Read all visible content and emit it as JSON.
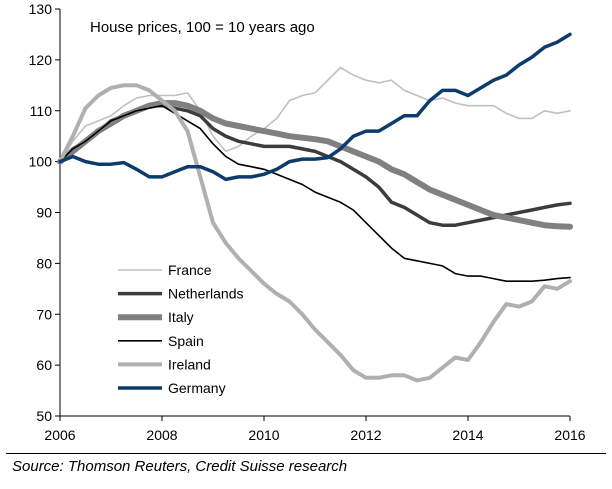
{
  "chart_data": {
    "type": "line",
    "title": "House prices, 100 = 10 years ago",
    "xlabel": "",
    "ylabel": "",
    "xlim": [
      2006,
      2016
    ],
    "ylim": [
      50,
      130
    ],
    "x_ticks": [
      2006,
      2008,
      2010,
      2012,
      2014,
      2016
    ],
    "y_ticks": [
      50,
      60,
      70,
      80,
      90,
      100,
      110,
      120,
      130
    ],
    "grid": false,
    "legend": "bottom-left",
    "series": [
      {
        "name": "France",
        "color": "#c0c0c0",
        "width": 1.6,
        "x": [
          2006.0,
          2006.25,
          2006.5,
          2006.75,
          2007.0,
          2007.25,
          2007.5,
          2007.75,
          2008.0,
          2008.25,
          2008.5,
          2008.75,
          2009.0,
          2009.25,
          2009.5,
          2009.75,
          2010.0,
          2010.25,
          2010.5,
          2010.75,
          2011.0,
          2011.25,
          2011.5,
          2011.75,
          2012.0,
          2012.25,
          2012.5,
          2012.75,
          2013.0,
          2013.25,
          2013.5,
          2013.75,
          2014.0,
          2014.25,
          2014.5,
          2014.75,
          2015.0,
          2015.25,
          2015.5,
          2015.75,
          2016.0
        ],
        "values": [
          100,
          104,
          107,
          108,
          109,
          111,
          112.5,
          113,
          113,
          113,
          113.5,
          110,
          105,
          102,
          103,
          105,
          106.5,
          108.5,
          112,
          113,
          113.5,
          116,
          118.5,
          117,
          116,
          115.5,
          116,
          114,
          113,
          112,
          112.5,
          111.5,
          111,
          111,
          111,
          109.5,
          108.5,
          108.5,
          110,
          109.5,
          110
        ]
      },
      {
        "name": "Netherlands",
        "color": "#3c3c3c",
        "width": 3.5,
        "x": [
          2006.0,
          2006.25,
          2006.5,
          2006.75,
          2007.0,
          2007.25,
          2007.5,
          2007.75,
          2008.0,
          2008.25,
          2008.5,
          2008.75,
          2009.0,
          2009.25,
          2009.5,
          2009.75,
          2010.0,
          2010.25,
          2010.5,
          2010.75,
          2011.0,
          2011.25,
          2011.5,
          2011.75,
          2012.0,
          2012.25,
          2012.5,
          2012.75,
          2013.0,
          2013.25,
          2013.5,
          2013.75,
          2014.0,
          2014.25,
          2014.5,
          2014.75,
          2015.0,
          2015.25,
          2015.5,
          2015.75,
          2016.0
        ],
        "values": [
          100,
          102.5,
          104,
          106,
          108,
          109,
          110,
          111,
          111,
          110.5,
          110,
          109,
          106.5,
          105,
          104,
          103.5,
          103,
          103,
          103,
          102.5,
          102,
          101,
          100,
          98.5,
          97,
          95,
          92,
          91,
          89.5,
          88,
          87.5,
          87.5,
          88,
          88.5,
          89,
          89.5,
          90,
          90.5,
          91,
          91.5,
          91.8
        ]
      },
      {
        "name": "Italy",
        "color": "#808080",
        "width": 6,
        "x": [
          2006.0,
          2006.25,
          2006.5,
          2006.75,
          2007.0,
          2007.25,
          2007.5,
          2007.75,
          2008.0,
          2008.25,
          2008.5,
          2008.75,
          2009.0,
          2009.25,
          2009.5,
          2009.75,
          2010.0,
          2010.25,
          2010.5,
          2010.75,
          2011.0,
          2011.25,
          2011.5,
          2011.75,
          2012.0,
          2012.25,
          2012.5,
          2012.75,
          2013.0,
          2013.25,
          2013.5,
          2013.75,
          2014.0,
          2014.25,
          2014.5,
          2014.75,
          2015.0,
          2015.25,
          2015.5,
          2015.75,
          2016.0
        ],
        "values": [
          100,
          102,
          104,
          106,
          107.5,
          109,
          110,
          111,
          111.5,
          111.5,
          111,
          110,
          108.5,
          107.5,
          107,
          106.5,
          106,
          105.5,
          105,
          104.7,
          104.4,
          104,
          103,
          102,
          101,
          100,
          98.5,
          97.5,
          96,
          94.5,
          93.5,
          92.5,
          91.5,
          90.5,
          89.5,
          89,
          88.5,
          88,
          87.5,
          87.3,
          87.2
        ]
      },
      {
        "name": "Spain",
        "color": "#000000",
        "width": 1.6,
        "x": [
          2006.0,
          2006.25,
          2006.5,
          2006.75,
          2007.0,
          2007.25,
          2007.5,
          2007.75,
          2008.0,
          2008.25,
          2008.5,
          2008.75,
          2009.0,
          2009.25,
          2009.5,
          2009.75,
          2010.0,
          2010.25,
          2010.5,
          2010.75,
          2011.0,
          2011.25,
          2011.5,
          2011.75,
          2012.0,
          2012.25,
          2012.5,
          2012.75,
          2013.0,
          2013.25,
          2013.5,
          2013.75,
          2014.0,
          2014.25,
          2014.5,
          2014.75,
          2015.0,
          2015.25,
          2015.5,
          2015.75,
          2016.0
        ],
        "values": [
          100,
          102.5,
          104,
          106,
          108,
          109,
          110,
          110.5,
          111,
          109.5,
          108,
          106.5,
          103.5,
          101,
          99.5,
          99,
          98.5,
          97.5,
          96.5,
          95.5,
          94,
          93,
          92,
          90.5,
          88,
          85.5,
          83,
          81,
          80.5,
          80,
          79.5,
          78,
          77.5,
          77.5,
          77,
          76.5,
          76.5,
          76.5,
          76.7,
          77,
          77.2
        ]
      },
      {
        "name": "Ireland",
        "color": "#b0b0b0",
        "width": 4,
        "x": [
          2006.0,
          2006.25,
          2006.5,
          2006.75,
          2007.0,
          2007.25,
          2007.5,
          2007.75,
          2008.0,
          2008.25,
          2008.5,
          2008.75,
          2009.0,
          2009.25,
          2009.5,
          2009.75,
          2010.0,
          2010.25,
          2010.5,
          2010.75,
          2011.0,
          2011.25,
          2011.5,
          2011.75,
          2012.0,
          2012.25,
          2012.5,
          2012.75,
          2013.0,
          2013.25,
          2013.5,
          2013.75,
          2014.0,
          2014.25,
          2014.5,
          2014.75,
          2015.0,
          2015.25,
          2015.5,
          2015.75,
          2016.0
        ],
        "values": [
          100,
          105,
          110.5,
          113,
          114.5,
          115,
          115,
          114,
          112,
          110,
          106,
          97,
          88,
          84,
          81,
          78.5,
          76,
          74,
          72.5,
          70,
          67,
          64.5,
          62,
          59,
          57.5,
          57.5,
          58,
          58,
          57,
          57.5,
          59.5,
          61.5,
          61,
          64.5,
          68.5,
          72,
          71.5,
          72.5,
          75.5,
          75,
          76.5
        ]
      },
      {
        "name": "Germany",
        "color": "#0c3c6c",
        "width": 3.5,
        "x": [
          2006.0,
          2006.25,
          2006.5,
          2006.75,
          2007.0,
          2007.25,
          2007.5,
          2007.75,
          2008.0,
          2008.25,
          2008.5,
          2008.75,
          2009.0,
          2009.25,
          2009.5,
          2009.75,
          2010.0,
          2010.25,
          2010.5,
          2010.75,
          2011.0,
          2011.25,
          2011.5,
          2011.75,
          2012.0,
          2012.25,
          2012.5,
          2012.75,
          2013.0,
          2013.25,
          2013.5,
          2013.75,
          2014.0,
          2014.25,
          2014.5,
          2014.75,
          2015.0,
          2015.25,
          2015.5,
          2015.75,
          2016.0
        ],
        "values": [
          100,
          101,
          100,
          99.5,
          99.5,
          99.8,
          98.5,
          97,
          97,
          98,
          99,
          99,
          98,
          96.5,
          97,
          97,
          97.5,
          98.5,
          100,
          100.5,
          100.5,
          100.8,
          102.5,
          105,
          106,
          106,
          107.5,
          109,
          109,
          112,
          114,
          114,
          113,
          114.5,
          116,
          117,
          119,
          120.5,
          122.5,
          123.5,
          125
        ]
      }
    ]
  },
  "source": "Source: Thomson Reuters, Credit Suisse research"
}
